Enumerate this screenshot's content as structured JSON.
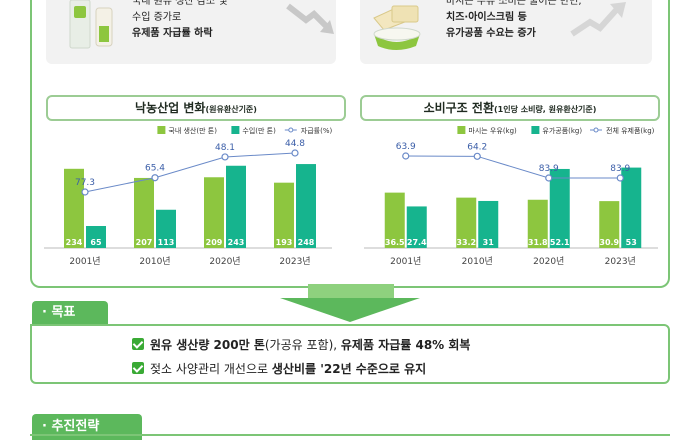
{
  "top_left_card": {
    "lines": [
      "국내 원유 생산 감소 및",
      "수입 증가로"
    ],
    "bold_line": "유제품 자급률 하락"
  },
  "top_right_card": {
    "line1": "마시는 우유 소비는 줄어든 반면,",
    "line2_bold": "치즈·아이스크림 등",
    "line3_bold": "유가공품 수요는 증가"
  },
  "colors": {
    "green_light": "#8dc63f",
    "green_teal": "#16b48e",
    "line_blue": "#6a8ac8",
    "border_green": "#7cc576"
  },
  "chart_data": [
    {
      "type": "bar",
      "title": "낙농산업 변화",
      "title_note": "(원유환산기준)",
      "categories": [
        "2001년",
        "2010년",
        "2020년",
        "2023년"
      ],
      "series": [
        {
          "name": "국내 생산(만 톤)",
          "values": [
            234,
            207,
            209,
            193
          ]
        },
        {
          "name": "수입(만 톤)",
          "values": [
            65,
            113,
            243,
            248
          ]
        }
      ],
      "line_series": {
        "name": "자급률(%)",
        "values": [
          77.3,
          65.4,
          48.1,
          44.8
        ],
        "labels": [
          "77.3",
          "65.4",
          "48.1",
          "44.8"
        ]
      },
      "ylim": [
        0,
        260
      ]
    },
    {
      "type": "bar",
      "title": "소비구조 전환",
      "title_note": "(1인당 소비량, 원유환산기준)",
      "categories": [
        "2001년",
        "2010년",
        "2020년",
        "2023년"
      ],
      "series": [
        {
          "name": "마시는 우유(kg)",
          "values": [
            36.5,
            33.2,
            31.8,
            30.9
          ]
        },
        {
          "name": "유가공품(kg)",
          "values": [
            27.4,
            31,
            52.1,
            53
          ]
        }
      ],
      "line_series": {
        "name": "전체 유제품(kg)",
        "values": [
          63.9,
          64.2,
          83.9,
          83.9
        ],
        "labels": [
          "63.9",
          "64.2",
          "83.9",
          "83.9"
        ]
      },
      "ylim": [
        0,
        58
      ]
    }
  ],
  "goal": {
    "tag": "· 목표",
    "line1_parts": [
      "원유 생산량 200만 톤",
      "(가공유 포함), ",
      "유제품 자급률 48% 회복"
    ],
    "line2_parts": [
      "젖소 사양관리 개선으로 ",
      "생산비를 '22년 수준으로 유지"
    ]
  },
  "strategy": {
    "tag": "· 추진전략"
  }
}
